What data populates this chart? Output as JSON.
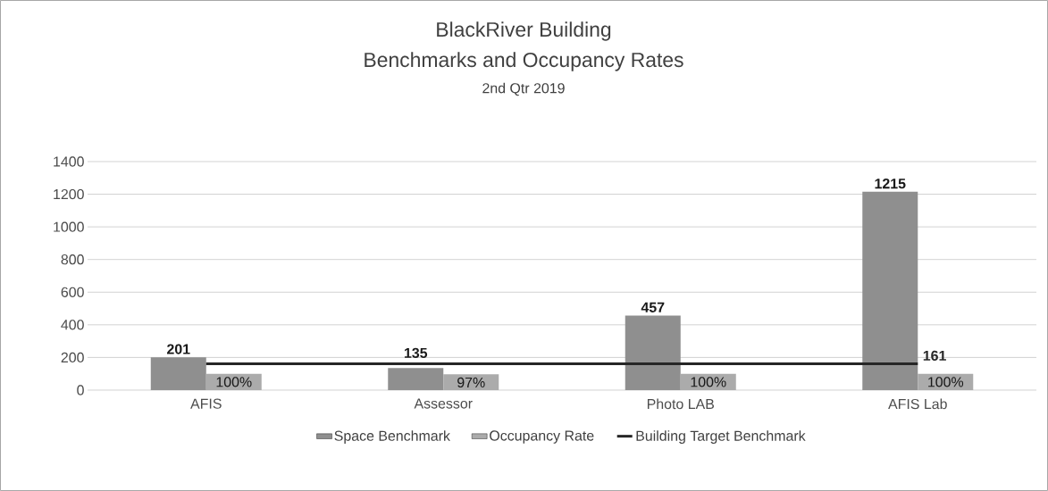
{
  "chart_data": {
    "type": "bar",
    "title": "BlackRiver Building",
    "subtitle": "Benchmarks and Occupancy Rates",
    "annotations": [
      "2nd Qtr 2019"
    ],
    "categories": [
      "AFIS",
      "Assessor",
      "Photo LAB",
      "AFIS Lab"
    ],
    "series": [
      {
        "name": "Space Benchmark",
        "color": "#8f8f8f",
        "values": [
          201,
          135,
          457,
          1215
        ],
        "value_labels": [
          "201",
          "135",
          "457",
          "1215"
        ]
      },
      {
        "name": "Occupancy Rate",
        "color": "#ababab",
        "values": [
          100,
          97,
          100,
          100
        ],
        "value_labels": [
          "100%",
          "97%",
          "100%",
          "100%"
        ]
      },
      {
        "name": "Building Target  Benchmark",
        "type": "line",
        "color": "#262626",
        "values": [
          161,
          161,
          161,
          161
        ],
        "value_labels": [
          null,
          null,
          null,
          "161"
        ]
      }
    ],
    "ylim": [
      0,
      1400
    ],
    "yticks": [
      0,
      200,
      400,
      600,
      800,
      1000,
      1200,
      1400
    ],
    "grid": "y",
    "legend": "bottom"
  }
}
